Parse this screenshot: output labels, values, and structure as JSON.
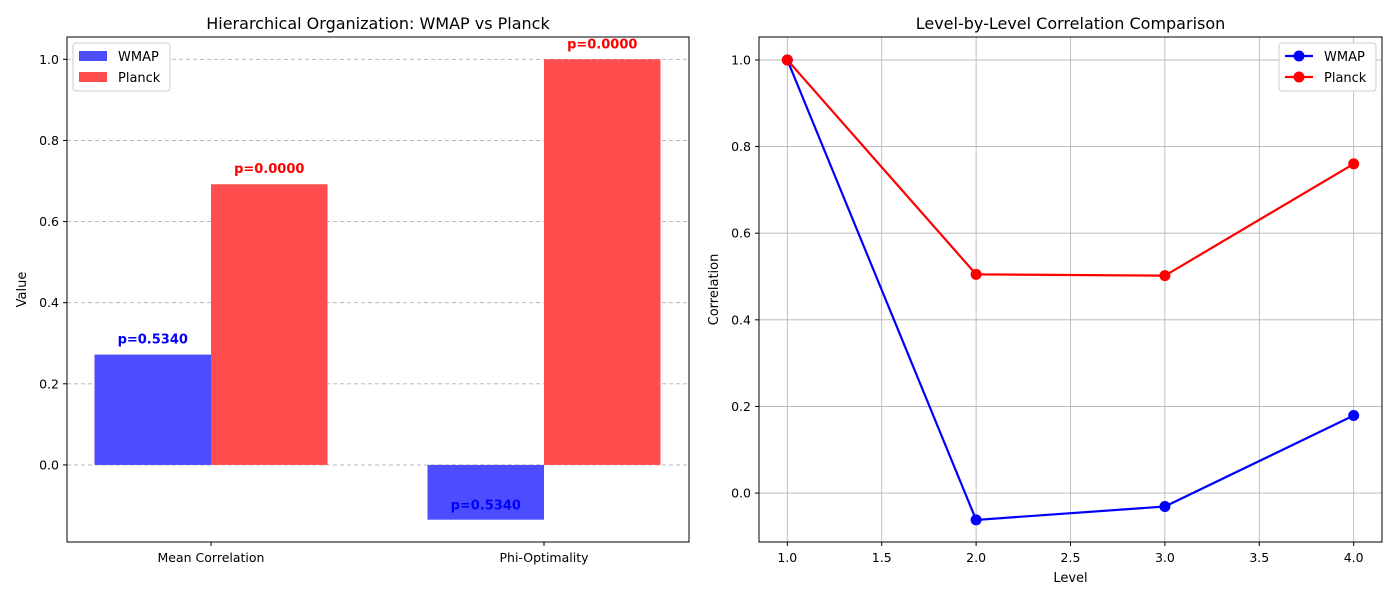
{
  "chart_data": [
    {
      "type": "bar",
      "title": "Hierarchical Organization: WMAP vs Planck",
      "xlabel": "",
      "ylabel": "Value",
      "ylim": [
        -0.19,
        1.055
      ],
      "yticks": [
        0.0,
        0.2,
        0.4,
        0.6,
        0.8,
        1.0
      ],
      "grid": "y-dashed",
      "legend_position": "upper-left",
      "categories": [
        "Mean Correlation",
        "Phi-Optimality"
      ],
      "series": [
        {
          "name": "WMAP",
          "values": [
            0.272,
            -0.135
          ],
          "color": "#4d4dff",
          "annotations": [
            "p=0.5340",
            "p=0.5340"
          ],
          "annotation_color": "#0000ff"
        },
        {
          "name": "Planck",
          "values": [
            0.692,
            1.0
          ],
          "color": "#ff4d4d",
          "annotations": [
            "p=0.0000",
            "p=0.0000"
          ],
          "annotation_color": "#ff0000"
        }
      ]
    },
    {
      "type": "line",
      "title": "Level-by-Level Correlation Comparison",
      "xlabel": "Level",
      "ylabel": "Correlation",
      "xlim": [
        0.85,
        4.15
      ],
      "ylim": [
        -0.113,
        1.053
      ],
      "xticks": [
        1.0,
        1.5,
        2.0,
        2.5,
        3.0,
        3.5,
        4.0
      ],
      "yticks": [
        0.0,
        0.2,
        0.4,
        0.6,
        0.8,
        1.0
      ],
      "grid": "both-solid",
      "legend_position": "upper-right",
      "x": [
        1,
        2,
        3,
        4
      ],
      "series": [
        {
          "name": "WMAP",
          "values": [
            1.0,
            -0.062,
            -0.031,
            0.179
          ],
          "color": "#0000ff"
        },
        {
          "name": "Planck",
          "values": [
            1.0,
            0.505,
            0.502,
            0.76
          ],
          "color": "#ff0000"
        }
      ]
    }
  ]
}
